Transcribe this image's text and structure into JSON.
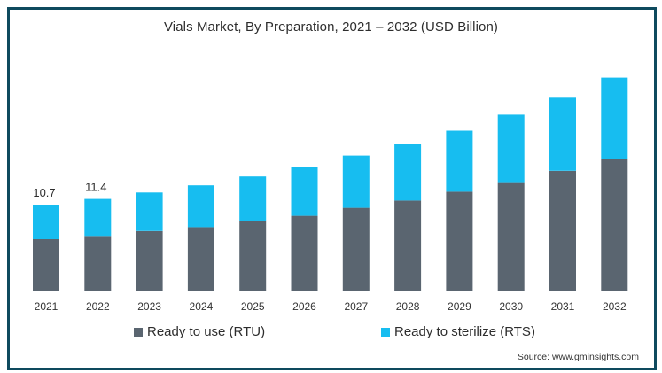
{
  "chart_data": {
    "type": "bar",
    "stacked": true,
    "title": "Vials Market, By Preparation, 2021 – 2032 (USD Billion)",
    "xlabel": "",
    "ylabel": "",
    "ylim": [
      0,
      27
    ],
    "grid": false,
    "legend_position": "bottom",
    "categories": [
      "2021",
      "2022",
      "2023",
      "2024",
      "2025",
      "2026",
      "2027",
      "2028",
      "2029",
      "2030",
      "2031",
      "2032"
    ],
    "series": [
      {
        "name": "Ready to use (RTU)",
        "color": "#5a6570",
        "values": [
          6.4,
          6.8,
          7.4,
          7.9,
          8.7,
          9.3,
          10.3,
          11.2,
          12.3,
          13.5,
          14.9,
          16.4
        ]
      },
      {
        "name": "Ready to sterilize (RTS)",
        "color": "#17bdf0",
        "values": [
          4.3,
          4.6,
          4.8,
          5.2,
          5.5,
          6.1,
          6.5,
          7.1,
          7.6,
          8.4,
          9.1,
          10.1
        ]
      }
    ],
    "data_labels": [
      {
        "category": "2021",
        "text": "10.7"
      },
      {
        "category": "2022",
        "text": "11.4"
      }
    ],
    "source": "Source: www.gminsights.com"
  }
}
